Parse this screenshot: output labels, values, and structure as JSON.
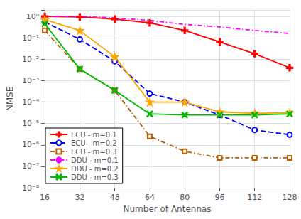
{
  "chart_data": {
    "type": "line",
    "xlabel": "Number of Antennas",
    "ylabel": "NMSE",
    "x": [
      16,
      32,
      48,
      64,
      80,
      96,
      112,
      128
    ],
    "xlim": [
      16,
      128
    ],
    "xticks": [
      16,
      32,
      48,
      64,
      80,
      96,
      112,
      128
    ],
    "ylim": [
      1e-08,
      2.0
    ],
    "yticks": [
      {
        "value": 1e-08,
        "label": "10⁻⁸"
      },
      {
        "value": 1e-07,
        "label": "10⁻⁷"
      },
      {
        "value": 1e-06,
        "label": "10⁻⁶"
      },
      {
        "value": 1e-05,
        "label": "10⁻⁵"
      },
      {
        "value": 0.0001,
        "label": "10⁻⁴"
      },
      {
        "value": 0.001,
        "label": "10⁻³"
      },
      {
        "value": 0.01,
        "label": "10⁻²"
      },
      {
        "value": 0.1,
        "label": "10⁻¹"
      },
      {
        "value": 1,
        "label": "10⁰"
      }
    ],
    "log": "y",
    "grid": true,
    "legend": "lower left",
    "series": [
      {
        "name": "ECU - m=0.1",
        "color": "#ff0000",
        "marker": "plus",
        "line_style": "solid",
        "values": [
          1.0,
          0.95,
          0.75,
          0.5,
          0.22,
          0.065,
          0.018,
          0.004
        ]
      },
      {
        "name": "ECU - m=0.2",
        "color": "#0000ff",
        "marker": "circle",
        "line_style": "dashed",
        "values": [
          0.55,
          0.085,
          0.008,
          0.00025,
          0.0001,
          2.5e-05,
          5e-06,
          3e-06
        ]
      },
      {
        "name": "ECU - m=0.3",
        "color": "#b85c00",
        "marker": "square",
        "line_style": "dashdot",
        "values": [
          0.22,
          0.0035,
          0.00035,
          2.5e-06,
          5e-07,
          2.5e-07,
          2.5e-07,
          2.5e-07
        ]
      },
      {
        "name": "DDU - m=0.1",
        "color": "#ff00ff",
        "marker": "none",
        "line_style": "dashdot",
        "values": [
          1.0,
          1.0,
          0.85,
          0.65,
          0.42,
          0.32,
          0.22,
          0.16
        ]
      },
      {
        "name": "DDU - m=0.2",
        "color": "#ffa500",
        "marker": "star",
        "line_style": "solid",
        "values": [
          0.7,
          0.22,
          0.013,
          0.0001,
          0.0001,
          3.5e-05,
          3e-05,
          3.2e-05
        ]
      },
      {
        "name": "DDU - m=0.3",
        "color": "#00bb00",
        "marker": "x",
        "line_style": "solid",
        "values": [
          0.45,
          0.0035,
          0.00035,
          2.8e-05,
          2.5e-05,
          2.5e-05,
          2.5e-05,
          2.8e-05
        ]
      }
    ]
  }
}
